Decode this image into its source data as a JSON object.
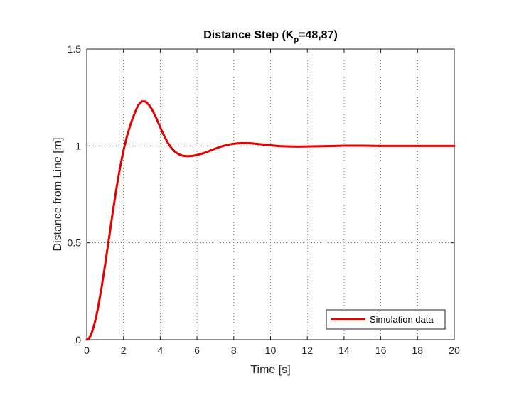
{
  "chart_data": {
    "type": "line",
    "title": {
      "prefix": "Distance Step (K",
      "subscript": "p",
      "suffix": "=48,87)"
    },
    "xlabel": "Time [s]",
    "ylabel": "Distance from Line [m]",
    "xlim": [
      0,
      20
    ],
    "ylim": [
      0,
      1.5
    ],
    "xticks": [
      0,
      2,
      4,
      6,
      8,
      10,
      12,
      14,
      16,
      18,
      20
    ],
    "xtick_labels": [
      "0",
      "2",
      "4",
      "6",
      "8",
      "10",
      "12",
      "14",
      "16",
      "18",
      "20"
    ],
    "yticks": [
      0,
      0.5,
      1,
      1.5
    ],
    "ytick_labels": [
      "0",
      "0.5",
      "1",
      "1.5"
    ],
    "grid": true,
    "legend_position": "bottom-right",
    "series": [
      {
        "name": "Simulation data",
        "color": "#e60000",
        "x": [
          0,
          0.1,
          0.2,
          0.3,
          0.4,
          0.5,
          0.6,
          0.8,
          1.0,
          1.2,
          1.4,
          1.6,
          1.8,
          2.0,
          2.2,
          2.4,
          2.6,
          2.8,
          3.0,
          3.2,
          3.4,
          3.6,
          3.8,
          4.0,
          4.2,
          4.4,
          4.6,
          4.8,
          5.0,
          5.2,
          5.4,
          5.6,
          5.8,
          6.0,
          6.2,
          6.4,
          6.6,
          6.8,
          7.0,
          7.2,
          7.4,
          7.6,
          7.8,
          8.0,
          8.2,
          8.4,
          8.6,
          8.8,
          9.0,
          9.2,
          9.4,
          9.6,
          9.8,
          10.0,
          10.5,
          11.0,
          11.5,
          12.0,
          12.5,
          13.0,
          13.5,
          14.0,
          14.5,
          15.0,
          16.0,
          17.0,
          18.0,
          19.0,
          20.0
        ],
        "y": [
          0,
          0.005,
          0.019,
          0.043,
          0.074,
          0.113,
          0.158,
          0.264,
          0.387,
          0.517,
          0.648,
          0.771,
          0.882,
          0.977,
          1.054,
          1.116,
          1.168,
          1.21,
          1.23,
          1.229,
          1.21,
          1.18,
          1.14,
          1.096,
          1.054,
          1.018,
          0.99,
          0.97,
          0.957,
          0.95,
          0.947,
          0.947,
          0.949,
          0.953,
          0.958,
          0.964,
          0.971,
          0.979,
          0.986,
          0.993,
          0.999,
          1.004,
          1.008,
          1.011,
          1.013,
          1.014,
          1.014,
          1.014,
          1.013,
          1.011,
          1.009,
          1.007,
          1.005,
          1.003,
          0.999,
          0.997,
          0.996,
          0.997,
          0.998,
          0.999,
          1.0,
          1.001,
          1.001,
          1.001,
          1.0,
          1.0,
          1.0,
          1.0,
          1.0
        ]
      }
    ]
  }
}
